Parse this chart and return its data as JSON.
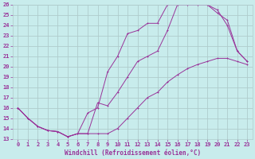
{
  "xlabel": "Windchill (Refroidissement éolien,°C)",
  "bg_color": "#c8ecec",
  "grid_color": "#b0cccc",
  "line_color": "#993399",
  "xlim": [
    -0.5,
    23.5
  ],
  "ylim": [
    13,
    26
  ],
  "xticks": [
    0,
    1,
    2,
    3,
    4,
    5,
    6,
    7,
    8,
    9,
    10,
    11,
    12,
    13,
    14,
    15,
    16,
    17,
    18,
    19,
    20,
    21,
    22,
    23
  ],
  "yticks": [
    13,
    14,
    15,
    16,
    17,
    18,
    19,
    20,
    21,
    22,
    23,
    24,
    25,
    26
  ],
  "curve1_x": [
    0,
    1,
    2,
    3,
    4,
    5,
    6,
    7,
    8,
    9,
    10,
    11,
    12,
    13,
    14,
    15,
    16,
    17,
    18,
    19,
    20,
    21,
    22,
    23
  ],
  "curve1_y": [
    16.0,
    15.0,
    14.2,
    13.8,
    13.7,
    13.2,
    13.5,
    13.5,
    13.5,
    13.5,
    14.0,
    15.0,
    16.0,
    17.0,
    17.5,
    18.5,
    19.2,
    19.8,
    20.2,
    20.5,
    20.8,
    20.8,
    20.5,
    20.2
  ],
  "curve2_x": [
    0,
    1,
    2,
    3,
    4,
    5,
    6,
    7,
    8,
    9,
    10,
    11,
    12,
    13,
    14,
    15,
    16,
    17,
    18,
    19,
    20,
    21,
    22,
    23
  ],
  "curve2_y": [
    16.0,
    15.0,
    14.2,
    13.8,
    13.7,
    13.2,
    13.5,
    13.5,
    16.5,
    16.2,
    17.5,
    19.0,
    20.5,
    21.0,
    21.5,
    23.5,
    26.0,
    26.0,
    26.0,
    26.0,
    25.5,
    24.0,
    21.5,
    20.5
  ],
  "curve3_x": [
    0,
    1,
    2,
    3,
    4,
    5,
    6,
    7,
    8,
    9,
    10,
    11,
    12,
    13,
    14,
    15,
    16,
    17,
    18,
    19,
    20,
    21,
    22,
    23
  ],
  "curve3_y": [
    16.0,
    15.0,
    14.2,
    13.8,
    13.7,
    13.2,
    13.5,
    15.5,
    16.0,
    19.5,
    21.0,
    23.2,
    23.5,
    24.2,
    24.2,
    26.0,
    26.0,
    26.0,
    26.0,
    26.0,
    25.2,
    24.5,
    21.5,
    20.5
  ]
}
